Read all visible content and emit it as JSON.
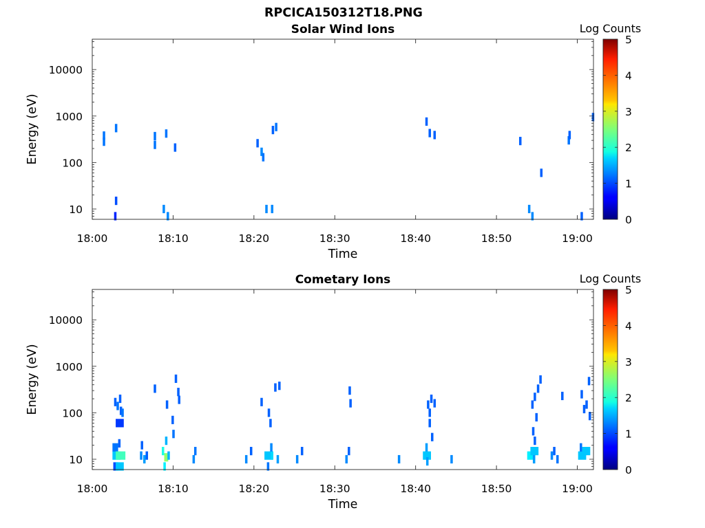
{
  "figure": {
    "title": "RPCICA150312T18.PNG"
  },
  "chart_data": [
    {
      "type": "heatmap",
      "title": "Solar Wind Ions",
      "xlabel": "Time",
      "ylabel": "Energy (eV)",
      "x_ticks": [
        "18:00",
        "18:10",
        "18:20",
        "18:30",
        "18:40",
        "18:50",
        "19:00"
      ],
      "xlim_minutes": [
        0,
        62
      ],
      "y_scale": "log",
      "y_ticks": [
        "10",
        "100",
        "1000",
        "10000"
      ],
      "ylim": [
        6,
        45000
      ],
      "colorbar": {
        "label": "Log Counts",
        "ticks": [
          "0",
          "1",
          "2",
          "3",
          "4",
          "5"
        ],
        "range": [
          0,
          5
        ],
        "colormap": "jet"
      },
      "cells": [
        [
          1.3,
          280,
          1.2,
          0.3
        ],
        [
          1.3,
          380,
          1.2,
          0.3
        ],
        [
          2.8,
          550,
          1.2,
          0.3
        ],
        [
          2.8,
          15,
          1.0,
          0.3
        ],
        [
          2.7,
          7,
          0.8,
          0.3
        ],
        [
          7.6,
          240,
          1.2,
          0.3
        ],
        [
          7.6,
          370,
          1.2,
          0.3
        ],
        [
          8.7,
          10,
          1.3,
          0.3
        ],
        [
          9.0,
          420,
          1.2,
          0.3
        ],
        [
          9.2,
          7,
          1.3,
          0.3
        ],
        [
          10.1,
          210,
          1.1,
          0.3
        ],
        [
          20.3,
          260,
          1.1,
          0.3
        ],
        [
          20.8,
          170,
          1.3,
          0.3
        ],
        [
          21.0,
          130,
          1.2,
          0.3
        ],
        [
          21.4,
          10,
          1.3,
          0.3
        ],
        [
          22.1,
          10,
          1.3,
          0.3
        ],
        [
          22.2,
          500,
          1.1,
          0.3
        ],
        [
          22.6,
          580,
          1.2,
          0.3
        ],
        [
          41.2,
          760,
          1.1,
          0.3
        ],
        [
          41.6,
          430,
          1.1,
          0.3
        ],
        [
          42.2,
          390,
          1.1,
          0.3
        ],
        [
          52.8,
          290,
          1.1,
          0.3
        ],
        [
          53.9,
          10,
          1.3,
          0.3
        ],
        [
          54.3,
          7,
          1.3,
          0.3
        ],
        [
          55.4,
          60,
          1.1,
          0.3
        ],
        [
          58.8,
          300,
          1.2,
          0.3
        ],
        [
          58.9,
          390,
          1.1,
          0.3
        ],
        [
          60.4,
          7,
          1.1,
          0.3
        ],
        [
          61.8,
          950,
          1.1,
          0.3
        ]
      ]
    },
    {
      "type": "heatmap",
      "title": "Cometary Ions",
      "xlabel": "Time",
      "ylabel": "Energy (eV)",
      "x_ticks": [
        "18:00",
        "18:10",
        "18:20",
        "18:30",
        "18:40",
        "18:50",
        "19:00"
      ],
      "xlim_minutes": [
        0,
        62
      ],
      "y_scale": "log",
      "y_ticks": [
        "10",
        "100",
        "1000",
        "10000"
      ],
      "ylim": [
        6,
        45000
      ],
      "colorbar": {
        "label": "Log Counts",
        "ticks": [
          "0",
          "1",
          "2",
          "3",
          "4",
          "5"
        ],
        "range": [
          0,
          5
        ],
        "colormap": "jet"
      },
      "cells": [
        [
          2.5,
          12,
          1.6,
          1.0
        ],
        [
          2.5,
          18,
          1.2,
          0.7
        ],
        [
          2.6,
          7,
          1.0,
          0.6
        ],
        [
          2.9,
          12,
          2.2,
          1.2
        ],
        [
          2.9,
          7,
          1.6,
          1.0
        ],
        [
          3.0,
          140,
          1.2,
          0.3
        ],
        [
          2.7,
          170,
          1.1,
          0.3
        ],
        [
          3.3,
          200,
          1.1,
          0.3
        ],
        [
          3.4,
          110,
          1.1,
          0.3
        ],
        [
          3.6,
          100,
          1.2,
          0.3
        ],
        [
          3.2,
          22,
          1.1,
          0.3
        ],
        [
          2.9,
          60,
          0.9,
          1.0
        ],
        [
          5.9,
          12,
          1.3,
          0.3
        ],
        [
          6.0,
          20,
          1.1,
          0.3
        ],
        [
          6.3,
          10,
          1.4,
          0.3
        ],
        [
          6.6,
          12,
          1.1,
          0.3
        ],
        [
          7.6,
          330,
          1.1,
          0.3
        ],
        [
          8.6,
          15,
          2.0,
          0.3
        ],
        [
          8.9,
          11,
          2.6,
          0.5
        ],
        [
          8.8,
          7,
          1.8,
          0.3
        ],
        [
          9.0,
          25,
          1.5,
          0.3
        ],
        [
          9.3,
          12,
          1.5,
          0.3
        ],
        [
          9.1,
          150,
          1.1,
          0.3
        ],
        [
          9.8,
          70,
          1.1,
          0.3
        ],
        [
          9.9,
          35,
          1.2,
          0.3
        ],
        [
          10.2,
          540,
          1.1,
          0.3
        ],
        [
          10.5,
          280,
          1.1,
          0.3
        ],
        [
          10.6,
          190,
          1.1,
          0.3
        ],
        [
          12.4,
          10,
          1.3,
          0.3
        ],
        [
          12.6,
          15,
          1.2,
          0.3
        ],
        [
          18.9,
          10,
          1.3,
          0.3
        ],
        [
          19.5,
          15,
          1.1,
          0.3
        ],
        [
          20.8,
          170,
          1.1,
          0.3
        ],
        [
          21.3,
          12,
          1.6,
          1.0
        ],
        [
          21.6,
          7,
          1.2,
          0.3
        ],
        [
          22.1,
          12,
          1.7,
          0.3
        ],
        [
          22.0,
          18,
          1.3,
          0.3
        ],
        [
          22.5,
          350,
          1.1,
          0.3
        ],
        [
          22.8,
          10,
          1.4,
          0.3
        ],
        [
          23.0,
          380,
          1.1,
          0.3
        ],
        [
          21.7,
          100,
          1.1,
          0.3
        ],
        [
          21.9,
          60,
          1.1,
          0.3
        ],
        [
          25.2,
          10,
          1.3,
          0.3
        ],
        [
          25.8,
          15,
          1.1,
          0.3
        ],
        [
          31.3,
          10,
          1.3,
          0.3
        ],
        [
          31.6,
          15,
          1.1,
          0.3
        ],
        [
          31.7,
          300,
          1.1,
          0.3
        ],
        [
          31.8,
          160,
          1.1,
          0.3
        ],
        [
          37.8,
          10,
          1.3,
          0.3
        ],
        [
          40.9,
          12,
          1.6,
          1.0
        ],
        [
          41.2,
          18,
          1.4,
          0.3
        ],
        [
          41.3,
          9,
          1.4,
          0.3
        ],
        [
          41.4,
          150,
          1.1,
          0.3
        ],
        [
          41.6,
          100,
          1.1,
          0.3
        ],
        [
          41.6,
          60,
          1.1,
          0.3
        ],
        [
          41.8,
          200,
          1.1,
          0.3
        ],
        [
          41.9,
          30,
          1.1,
          0.3
        ],
        [
          42.2,
          160,
          1.1,
          0.3
        ],
        [
          44.3,
          10,
          1.3,
          0.3
        ],
        [
          53.8,
          12,
          1.8,
          1.0
        ],
        [
          54.2,
          15,
          1.6,
          1.0
        ],
        [
          54.5,
          10,
          1.4,
          0.3
        ],
        [
          54.4,
          40,
          1.1,
          0.3
        ],
        [
          54.6,
          25,
          1.1,
          0.3
        ],
        [
          54.6,
          220,
          1.1,
          0.3
        ],
        [
          55.0,
          330,
          1.1,
          0.3
        ],
        [
          55.3,
          520,
          1.1,
          0.3
        ],
        [
          54.3,
          150,
          1.1,
          0.3
        ],
        [
          54.8,
          80,
          1.1,
          0.3
        ],
        [
          56.7,
          12,
          1.3,
          0.3
        ],
        [
          57.0,
          15,
          1.1,
          0.3
        ],
        [
          57.4,
          10,
          1.2,
          0.3
        ],
        [
          58.0,
          230,
          1.1,
          0.3
        ],
        [
          60.1,
          12,
          1.6,
          1.0
        ],
        [
          60.3,
          18,
          1.2,
          0.3
        ],
        [
          60.6,
          15,
          1.6,
          1.0
        ],
        [
          60.4,
          250,
          1.1,
          0.3
        ],
        [
          60.7,
          120,
          1.1,
          0.3
        ],
        [
          61.0,
          150,
          1.1,
          0.3
        ],
        [
          61.3,
          480,
          1.1,
          0.3
        ],
        [
          61.4,
          85,
          1.1,
          0.3
        ]
      ]
    }
  ]
}
